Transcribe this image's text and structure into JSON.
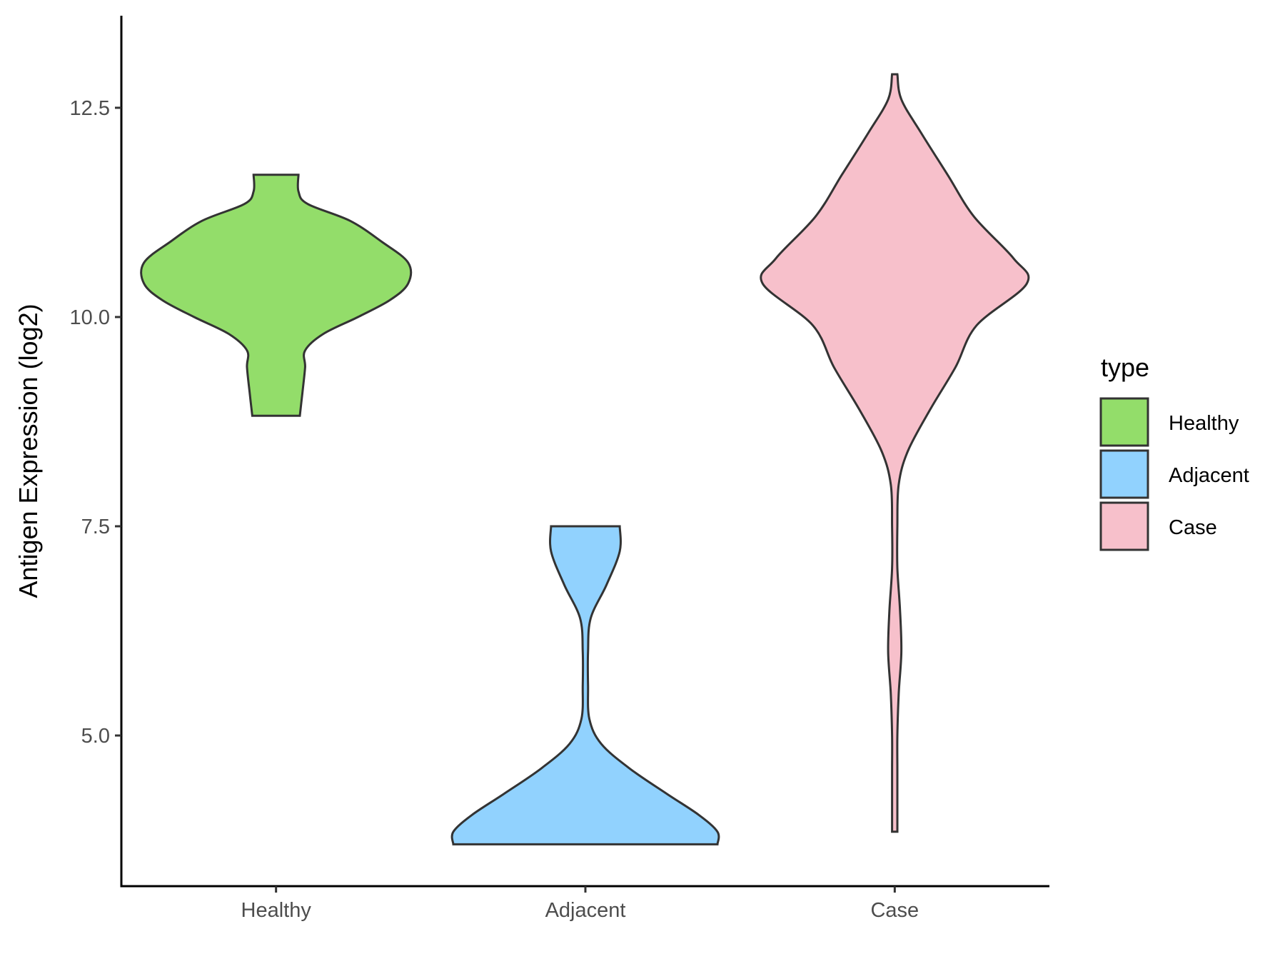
{
  "chart_data": {
    "type": "violin",
    "ylabel": "Antigen Expression (log2)",
    "xlabel": "",
    "categories": [
      "Healthy",
      "Adjacent",
      "Case"
    ],
    "ylim": [
      3.2,
      13.6
    ],
    "yticks": [
      "5.0",
      "7.5",
      "10.0",
      "12.5"
    ],
    "grid": false,
    "legend": {
      "title": "type",
      "position": "right",
      "entries": [
        "Healthy",
        "Adjacent",
        "Case"
      ]
    },
    "series": [
      {
        "name": "Healthy",
        "color": "#93dd6a",
        "ymin": 8.82,
        "ymax": 11.7,
        "density_profile": [
          [
            8.82,
            0.18
          ],
          [
            9.1,
            0.2
          ],
          [
            9.4,
            0.22
          ],
          [
            9.6,
            0.22
          ],
          [
            9.8,
            0.36
          ],
          [
            10.0,
            0.62
          ],
          [
            10.2,
            0.86
          ],
          [
            10.4,
            1.0
          ],
          [
            10.65,
            1.0
          ],
          [
            10.9,
            0.8
          ],
          [
            11.15,
            0.56
          ],
          [
            11.35,
            0.24
          ],
          [
            11.5,
            0.17
          ],
          [
            11.7,
            0.17
          ]
        ]
      },
      {
        "name": "Adjacent",
        "color": "#91d2fe",
        "ymin": 3.7,
        "ymax": 7.5,
        "density_profile": [
          [
            3.7,
            1.0
          ],
          [
            3.85,
            1.0
          ],
          [
            4.05,
            0.86
          ],
          [
            4.3,
            0.62
          ],
          [
            4.6,
            0.34
          ],
          [
            4.9,
            0.12
          ],
          [
            5.2,
            0.03
          ],
          [
            5.6,
            0.02
          ],
          [
            6.0,
            0.02
          ],
          [
            6.4,
            0.04
          ],
          [
            6.8,
            0.16
          ],
          [
            7.2,
            0.26
          ],
          [
            7.5,
            0.26
          ]
        ]
      },
      {
        "name": "Case",
        "color": "#f7c0cb",
        "ymin": 3.85,
        "ymax": 12.9,
        "density_profile": [
          [
            3.85,
            0.02
          ],
          [
            4.2,
            0.02
          ],
          [
            4.6,
            0.02
          ],
          [
            5.0,
            0.02
          ],
          [
            5.5,
            0.03
          ],
          [
            6.0,
            0.05
          ],
          [
            6.5,
            0.04
          ],
          [
            7.0,
            0.02
          ],
          [
            7.5,
            0.02
          ],
          [
            8.0,
            0.03
          ],
          [
            8.4,
            0.1
          ],
          [
            8.9,
            0.27
          ],
          [
            9.4,
            0.46
          ],
          [
            9.9,
            0.62
          ],
          [
            10.4,
            1.0
          ],
          [
            10.7,
            0.9
          ],
          [
            11.2,
            0.6
          ],
          [
            11.7,
            0.4
          ],
          [
            12.2,
            0.2
          ],
          [
            12.6,
            0.05
          ],
          [
            12.9,
            0.02
          ]
        ]
      }
    ]
  }
}
